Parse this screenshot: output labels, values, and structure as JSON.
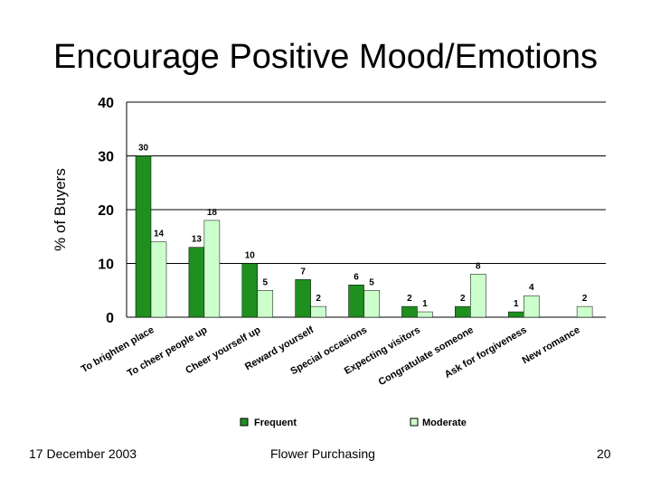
{
  "slide": {
    "title": "Encourage Positive Mood/Emotions",
    "date": "17 December 2003",
    "footer_center": "Flower Purchasing",
    "page_number": "20"
  },
  "colors": {
    "frequent": "#1f8f1f",
    "moderate": "#ccffcc",
    "grid": "#000000"
  },
  "chart_data": {
    "type": "bar",
    "ylabel": "% of Buyers",
    "xlabel": "",
    "ylim": [
      0,
      40
    ],
    "yticks": [
      "0",
      "10",
      "20",
      "30",
      "40"
    ],
    "grid": true,
    "legend_position": "bottom",
    "categories": [
      "To brighten place",
      "To cheer people up",
      "Cheer yourself up",
      "Reward yourself",
      "Special occasions",
      "Expecting visitors",
      "Congratulate someone",
      "Ask for forgiveness",
      "New romance"
    ],
    "series": [
      {
        "name": "Frequent",
        "values": [
          30,
          13,
          10,
          7,
          6,
          2,
          2,
          1,
          null
        ],
        "labels": [
          "30",
          "13",
          "10",
          "7",
          "6",
          "2",
          "2",
          "1",
          ""
        ]
      },
      {
        "name": "Moderate",
        "values": [
          14,
          18,
          5,
          2,
          5,
          1,
          8,
          4,
          2
        ],
        "labels": [
          "14",
          "18",
          "5",
          "2",
          "5",
          "1",
          "8",
          "4",
          "2"
        ]
      }
    ]
  }
}
